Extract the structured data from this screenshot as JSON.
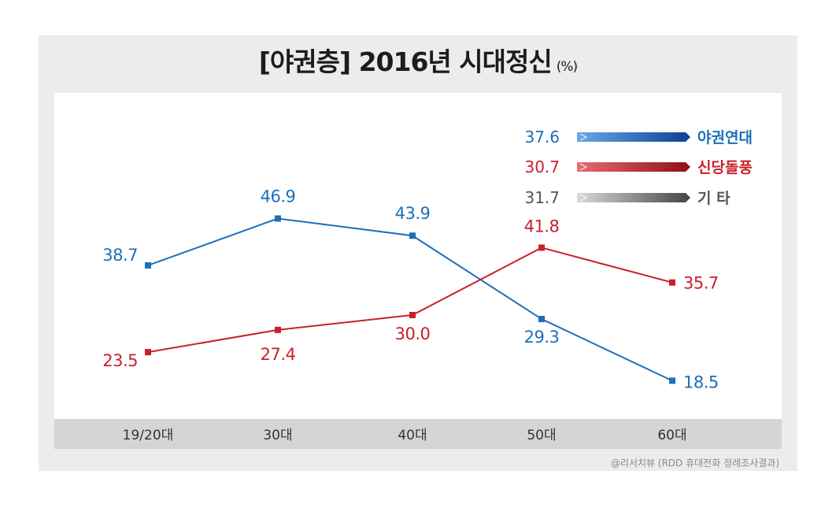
{
  "title": "[야권층] 2016년 시대정신",
  "title_unit": "(%)",
  "source": "@리서치뷰 (RDD 휴대전화 정례조사결과)",
  "colors": {
    "blue": "#1e6fba",
    "red": "#c8202b",
    "gray": "#555555"
  },
  "chart_data": {
    "type": "line",
    "categories": [
      "19/20대",
      "30대",
      "40대",
      "50대",
      "60대"
    ],
    "series": [
      {
        "name": "야권연대",
        "values": [
          38.7,
          46.9,
          43.9,
          29.3,
          18.5
        ],
        "overall": 37.6,
        "color": "#1e6fba"
      },
      {
        "name": "신당돌풍",
        "values": [
          23.5,
          27.4,
          30.0,
          41.8,
          35.7
        ],
        "overall": 30.7,
        "color": "#c8202b"
      }
    ],
    "other": {
      "name": "기    타",
      "overall": 31.7,
      "color": "#555555"
    },
    "legend_position": "top-right",
    "grid": false
  }
}
